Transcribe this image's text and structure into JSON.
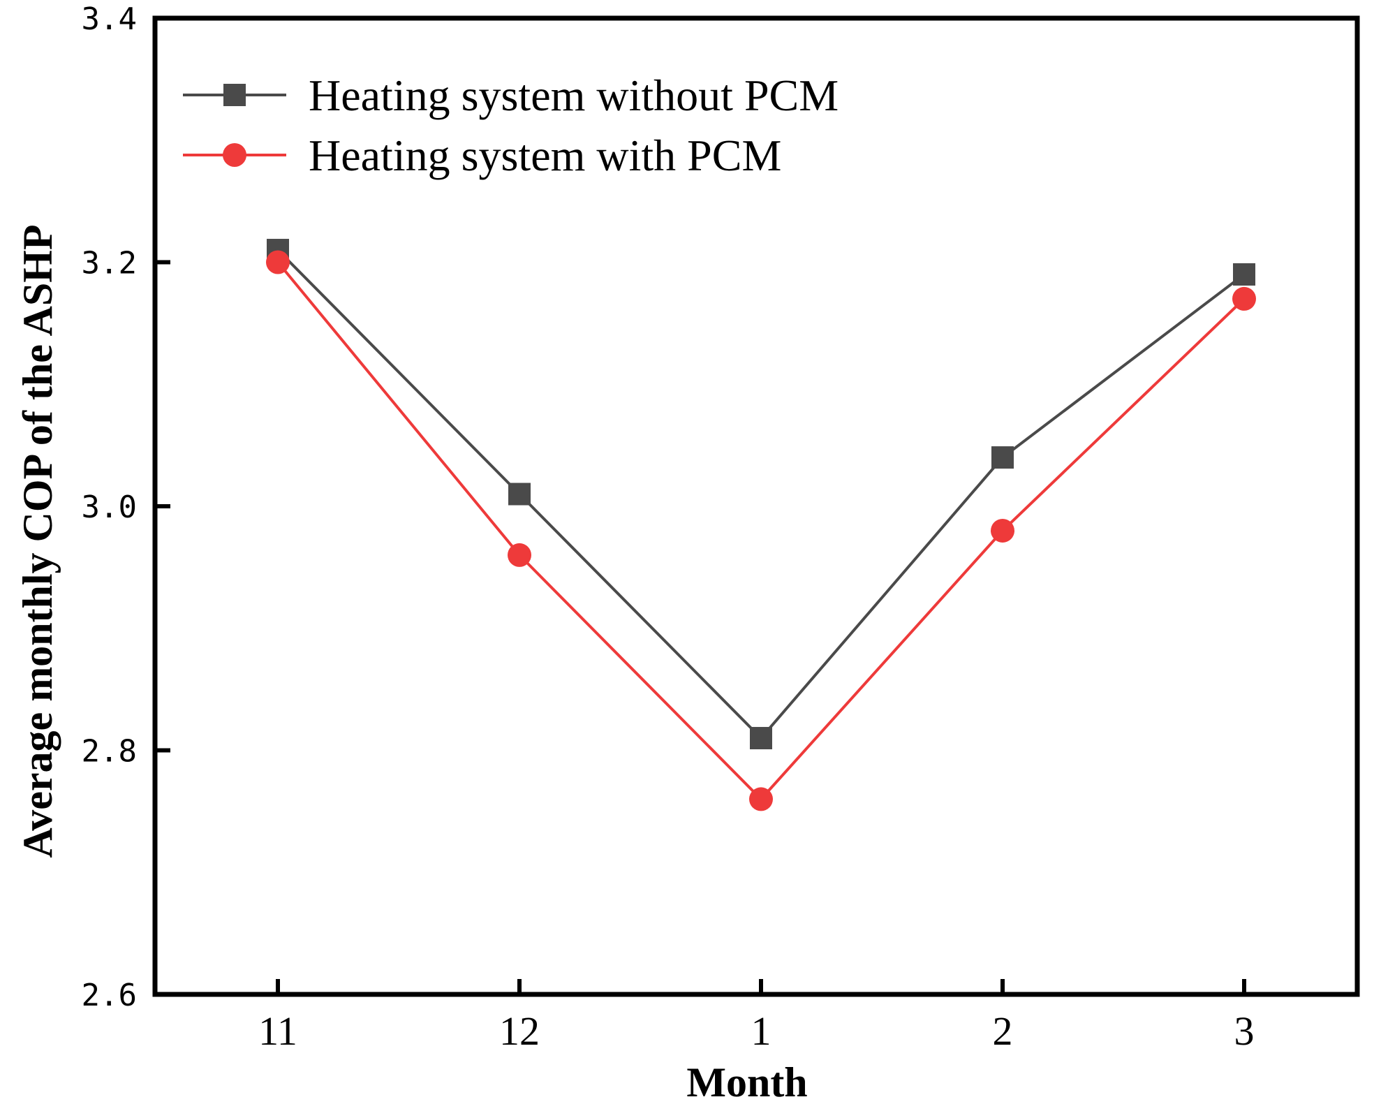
{
  "chart_data": {
    "type": "line",
    "title": "",
    "xlabel": "Month",
    "ylabel": "Average monthly COP of the ASHP",
    "categories": [
      "11",
      "12",
      "1",
      "2",
      "3"
    ],
    "ylim": [
      2.6,
      3.4
    ],
    "yticks": [
      "2.6",
      "2.8",
      "3.0",
      "3.2",
      "3.4"
    ],
    "grid": false,
    "legend_position": "top-left",
    "series": [
      {
        "name": "Heating system without PCM",
        "marker": "square",
        "color": "#4a4a4a",
        "values": [
          3.21,
          3.01,
          2.81,
          3.04,
          3.19
        ]
      },
      {
        "name": "Heating system with PCM",
        "marker": "circle",
        "color": "#ee3a3a",
        "values": [
          3.2,
          2.96,
          2.76,
          2.98,
          3.17
        ]
      }
    ]
  }
}
